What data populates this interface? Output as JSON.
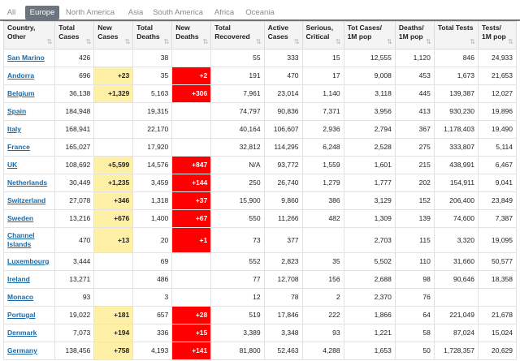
{
  "tabs": [
    "All",
    "Europe",
    "North America",
    "Asia",
    "South America",
    "Africa",
    "Oceania"
  ],
  "active_tab": "Europe",
  "colors": {
    "new_cases_bg": "#fff0a8",
    "new_deaths_bg": "#ff0000",
    "link": "#1a6aa8",
    "active_tab_bg": "#6c757d"
  },
  "headers": [
    "Country, Other",
    "Total Cases",
    "New Cases",
    "Total Deaths",
    "New Deaths",
    "Total Recovered",
    "Active Cases",
    "Serious, Critical",
    "Tot Cases/ 1M pop",
    "Deaths/ 1M pop",
    "Total Tests",
    "Tests/ 1M pop"
  ],
  "sort_icon": "⇅",
  "rows": [
    [
      "San Marino",
      "426",
      "",
      "38",
      "",
      "55",
      "333",
      "15",
      "12,555",
      "1,120",
      "846",
      "24,933"
    ],
    [
      "Andorra",
      "696",
      "+23",
      "35",
      "+2",
      "191",
      "470",
      "17",
      "9,008",
      "453",
      "1,673",
      "21,653"
    ],
    [
      "Belgium",
      "36,138",
      "+1,329",
      "5,163",
      "+306",
      "7,961",
      "23,014",
      "1,140",
      "3,118",
      "445",
      "139,387",
      "12,027"
    ],
    [
      "Spain",
      "184,948",
      "",
      "19,315",
      "",
      "74,797",
      "90,836",
      "7,371",
      "3,956",
      "413",
      "930,230",
      "19,896"
    ],
    [
      "Italy",
      "168,941",
      "",
      "22,170",
      "",
      "40,164",
      "106,607",
      "2,936",
      "2,794",
      "367",
      "1,178,403",
      "19,490"
    ],
    [
      "France",
      "165,027",
      "",
      "17,920",
      "",
      "32,812",
      "114,295",
      "6,248",
      "2,528",
      "275",
      "333,807",
      "5,114"
    ],
    [
      "UK",
      "108,692",
      "+5,599",
      "14,576",
      "+847",
      "N/A",
      "93,772",
      "1,559",
      "1,601",
      "215",
      "438,991",
      "6,467"
    ],
    [
      "Netherlands",
      "30,449",
      "+1,235",
      "3,459",
      "+144",
      "250",
      "26,740",
      "1,279",
      "1,777",
      "202",
      "154,911",
      "9,041"
    ],
    [
      "Switzerland",
      "27,078",
      "+346",
      "1,318",
      "+37",
      "15,900",
      "9,860",
      "386",
      "3,129",
      "152",
      "206,400",
      "23,849"
    ],
    [
      "Sweden",
      "13,216",
      "+676",
      "1,400",
      "+67",
      "550",
      "11,266",
      "482",
      "1,309",
      "139",
      "74,600",
      "7,387"
    ],
    [
      "Channel Islands",
      "470",
      "+13",
      "20",
      "+1",
      "73",
      "377",
      "",
      "2,703",
      "115",
      "3,320",
      "19,095"
    ],
    [
      "Luxembourg",
      "3,444",
      "",
      "69",
      "",
      "552",
      "2,823",
      "35",
      "5,502",
      "110",
      "31,660",
      "50,577"
    ],
    [
      "Ireland",
      "13,271",
      "",
      "486",
      "",
      "77",
      "12,708",
      "156",
      "2,688",
      "98",
      "90,646",
      "18,358"
    ],
    [
      "Monaco",
      "93",
      "",
      "3",
      "",
      "12",
      "78",
      "2",
      "2,370",
      "76",
      "",
      ""
    ],
    [
      "Portugal",
      "19,022",
      "+181",
      "657",
      "+28",
      "519",
      "17,846",
      "222",
      "1,866",
      "64",
      "221,049",
      "21,678"
    ],
    [
      "Denmark",
      "7,073",
      "+194",
      "336",
      "+15",
      "3,389",
      "3,348",
      "93",
      "1,221",
      "58",
      "87,024",
      "15,024"
    ],
    [
      "Germany",
      "138,456",
      "+758",
      "4,193",
      "+141",
      "81,800",
      "52,463",
      "4,288",
      "1,653",
      "50",
      "1,728,357",
      "20,629"
    ]
  ]
}
